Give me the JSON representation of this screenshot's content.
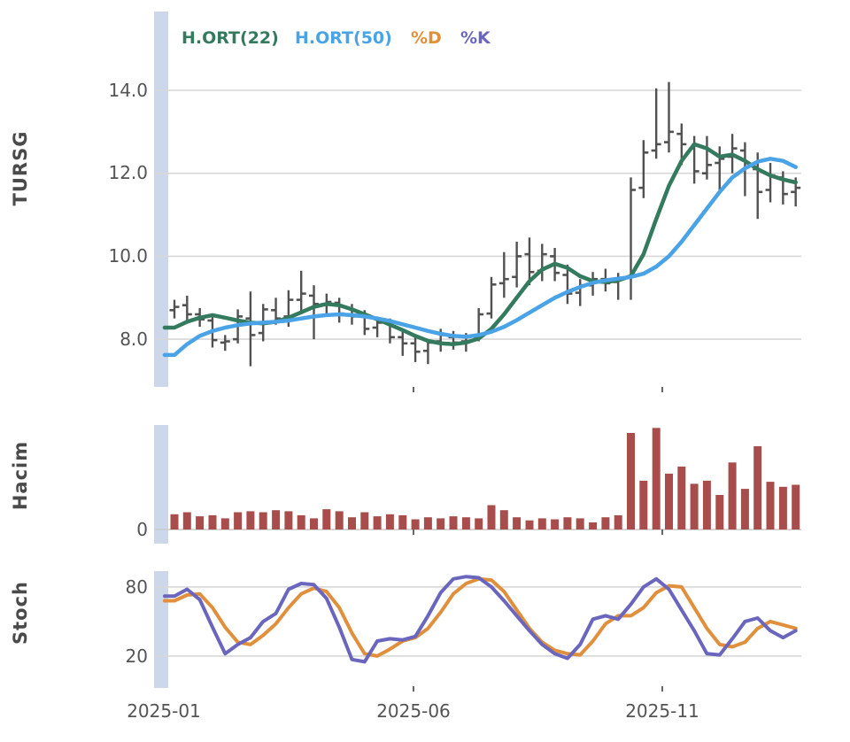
{
  "title": "TURSG",
  "theme": {
    "background": "#ffffff",
    "grid": "#d7d7d7",
    "band": "#ccd8ea",
    "ohlc": "#3a3a3a",
    "baseline": "#c9c9c9",
    "tick": "#666666",
    "text": "#545454",
    "panel_label": "#4a4a4a"
  },
  "legend": [
    {
      "label": "H.ORT(22)",
      "color": "#347a5e"
    },
    {
      "label": "H.ORT(50)",
      "color": "#4aa3e6"
    },
    {
      "label": "%D",
      "color": "#e0903c"
    },
    {
      "label": "%K",
      "color": "#6b66bd"
    }
  ],
  "panels": {
    "price": {
      "label": "TURSG"
    },
    "volume": {
      "label": "Hacim"
    },
    "stoch": {
      "label": "Stoch"
    }
  },
  "xaxis": {
    "labels": [
      "2025-01",
      "2025-06",
      "2025-11"
    ]
  },
  "chart_data": [
    {
      "type": "ohlc",
      "panel": "TURSG",
      "frequency": "weekly",
      "x_range": [
        "2025-01",
        "2026-01"
      ],
      "ylim": [
        6.85,
        15.9
      ],
      "yticks": [
        {
          "value": 14.0,
          "label": "14.0"
        },
        {
          "value": 12.0,
          "label": "12.0"
        },
        {
          "value": 10.0,
          "label": "10.0"
        },
        {
          "value": 8.0,
          "label": "8.0"
        }
      ],
      "bars": [
        [
          8.7,
          8.95,
          8.5,
          8.78
        ],
        [
          8.82,
          9.05,
          8.4,
          8.6
        ],
        [
          8.6,
          8.75,
          8.3,
          8.48
        ],
        [
          8.45,
          8.6,
          7.8,
          7.98
        ],
        [
          7.92,
          8.1,
          7.72,
          7.95
        ],
        [
          8.0,
          8.72,
          7.9,
          8.55
        ],
        [
          8.5,
          9.15,
          7.35,
          8.1
        ],
        [
          8.15,
          8.85,
          7.95,
          8.72
        ],
        [
          8.7,
          9.0,
          8.35,
          8.5
        ],
        [
          8.55,
          9.18,
          8.3,
          8.95
        ],
        [
          8.95,
          9.65,
          8.6,
          9.1
        ],
        [
          9.05,
          9.3,
          8.0,
          8.85
        ],
        [
          8.85,
          9.1,
          8.55,
          8.9
        ],
        [
          8.88,
          9.0,
          8.4,
          8.62
        ],
        [
          8.6,
          8.85,
          8.35,
          8.55
        ],
        [
          8.55,
          8.7,
          8.1,
          8.25
        ],
        [
          8.28,
          8.55,
          8.05,
          8.4
        ],
        [
          8.38,
          8.5,
          7.9,
          8.05
        ],
        [
          8.05,
          8.25,
          7.6,
          7.9
        ],
        [
          7.9,
          8.1,
          7.45,
          7.7
        ],
        [
          7.72,
          8.0,
          7.4,
          7.92
        ],
        [
          7.95,
          8.25,
          7.7,
          8.1
        ],
        [
          8.05,
          8.2,
          7.75,
          7.92
        ],
        [
          7.95,
          8.15,
          7.7,
          8.05
        ],
        [
          8.05,
          8.75,
          7.95,
          8.6
        ],
        [
          8.62,
          9.5,
          8.5,
          9.32
        ],
        [
          9.35,
          10.1,
          9.0,
          9.45
        ],
        [
          9.5,
          10.35,
          9.25,
          10.0
        ],
        [
          10.05,
          10.45,
          9.3,
          9.62
        ],
        [
          9.65,
          10.3,
          9.4,
          10.05
        ],
        [
          10.0,
          10.2,
          9.4,
          9.6
        ],
        [
          9.55,
          9.8,
          8.85,
          9.1
        ],
        [
          9.12,
          9.45,
          8.8,
          9.3
        ],
        [
          9.3,
          9.62,
          9.05,
          9.45
        ],
        [
          9.45,
          9.7,
          9.15,
          9.35
        ],
        [
          9.38,
          9.6,
          8.95,
          9.45
        ],
        [
          9.5,
          11.9,
          8.95,
          11.6
        ],
        [
          11.65,
          12.8,
          11.4,
          12.5
        ],
        [
          12.55,
          14.05,
          12.35,
          12.7
        ],
        [
          12.75,
          14.2,
          12.5,
          13.0
        ],
        [
          12.95,
          13.2,
          12.2,
          12.7
        ],
        [
          12.6,
          12.9,
          11.75,
          12.05
        ],
        [
          12.0,
          12.9,
          11.85,
          12.2
        ],
        [
          12.25,
          12.65,
          11.55,
          12.35
        ],
        [
          12.4,
          12.95,
          12.0,
          12.6
        ],
        [
          12.55,
          12.75,
          11.45,
          12.15
        ],
        [
          12.1,
          12.5,
          10.9,
          11.55
        ],
        [
          11.6,
          12.25,
          11.3,
          11.95
        ],
        [
          11.9,
          12.05,
          11.25,
          11.5
        ],
        [
          11.55,
          11.9,
          11.2,
          11.65
        ]
      ],
      "series": [
        {
          "name": "H.ORT(22)",
          "color": "#347a5e",
          "values": [
            8.28,
            8.42,
            8.52,
            8.58,
            8.52,
            8.45,
            8.4,
            8.38,
            8.42,
            8.52,
            8.65,
            8.78,
            8.85,
            8.82,
            8.72,
            8.6,
            8.48,
            8.35,
            8.22,
            8.08,
            7.96,
            7.9,
            7.88,
            7.92,
            8.02,
            8.25,
            8.6,
            9.0,
            9.4,
            9.68,
            9.82,
            9.72,
            9.52,
            9.4,
            9.38,
            9.42,
            9.52,
            10.05,
            10.9,
            11.7,
            12.3,
            12.7,
            12.6,
            12.4,
            12.45,
            12.3,
            12.1,
            11.95,
            11.85,
            11.78
          ]
        },
        {
          "name": "H.ORT(50)",
          "color": "#4aa3e6",
          "values": [
            7.62,
            7.88,
            8.08,
            8.2,
            8.28,
            8.34,
            8.38,
            8.4,
            8.42,
            8.45,
            8.5,
            8.55,
            8.58,
            8.6,
            8.58,
            8.55,
            8.5,
            8.44,
            8.36,
            8.28,
            8.2,
            8.13,
            8.08,
            8.06,
            8.1,
            8.18,
            8.3,
            8.46,
            8.64,
            8.82,
            9.0,
            9.14,
            9.26,
            9.36,
            9.42,
            9.46,
            9.5,
            9.58,
            9.75,
            10.0,
            10.35,
            10.75,
            11.15,
            11.55,
            11.9,
            12.12,
            12.28,
            12.35,
            12.3,
            12.15
          ]
        }
      ]
    },
    {
      "type": "bar",
      "panel": "Hacim",
      "color": "#a84c4c",
      "ylim": [
        0,
        1.02
      ],
      "yticks": [
        {
          "value": 0,
          "label": "0"
        }
      ],
      "values": [
        0.15,
        0.17,
        0.13,
        0.14,
        0.11,
        0.17,
        0.18,
        0.17,
        0.19,
        0.18,
        0.14,
        0.11,
        0.2,
        0.18,
        0.12,
        0.17,
        0.13,
        0.15,
        0.14,
        0.1,
        0.12,
        0.11,
        0.13,
        0.12,
        0.11,
        0.24,
        0.19,
        0.12,
        0.09,
        0.11,
        0.1,
        0.12,
        0.11,
        0.07,
        0.12,
        0.14,
        0.95,
        0.48,
        1.0,
        0.55,
        0.62,
        0.45,
        0.48,
        0.34,
        0.66,
        0.4,
        0.82,
        0.47,
        0.42,
        0.44
      ]
    },
    {
      "type": "line",
      "panel": "Stoch",
      "ylim": [
        -6.2,
        93.8
      ],
      "yticks": [
        {
          "value": 80,
          "label": "80"
        },
        {
          "value": 20,
          "label": "20"
        }
      ],
      "series": [
        {
          "name": "%D",
          "color": "#e0903c",
          "values": [
            68,
            73,
            74,
            62,
            45,
            32,
            30,
            38,
            48,
            62,
            74,
            79,
            76,
            62,
            40,
            22,
            20,
            26,
            33,
            36,
            44,
            58,
            74,
            83,
            87,
            86,
            76,
            60,
            44,
            32,
            25,
            22,
            21,
            33,
            48,
            55,
            55,
            62,
            75,
            81,
            80,
            62,
            44,
            30,
            28,
            32,
            44,
            50,
            47,
            44
          ]
        },
        {
          "name": "%K",
          "color": "#6b66bd",
          "values": [
            72,
            78,
            69,
            45,
            22,
            30,
            36,
            50,
            57,
            78,
            83,
            82,
            70,
            45,
            17,
            15,
            33,
            35,
            34,
            37,
            55,
            75,
            87,
            89,
            88,
            80,
            68,
            55,
            42,
            30,
            22,
            18,
            30,
            52,
            55,
            52,
            65,
            80,
            87,
            78,
            60,
            42,
            22,
            21,
            35,
            50,
            53,
            42,
            36,
            42
          ]
        }
      ]
    }
  ]
}
